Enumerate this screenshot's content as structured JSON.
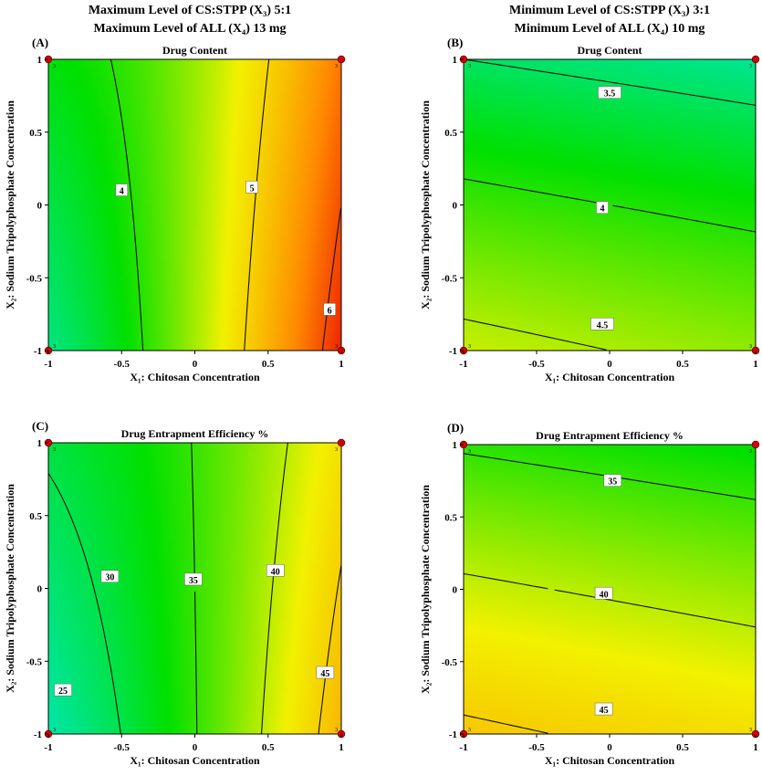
{
  "header": {
    "left_line1": "Maximum Level of CS:STPP (X₃) 5:1",
    "left_line2": "Maximum Level of ALL (X₄) 13 mg",
    "right_line1": "Minimum Level of CS:STPP (X₃) 3:1",
    "right_line2": "Minimum Level of ALL (X₄) 10 mg"
  },
  "chart_data": [
    {
      "type": "heatmap",
      "panel_label": "(A)",
      "title": "Drug Content",
      "xlabel": "X₁: Chitosan Concentration",
      "ylabel": "X₂: Sodium Tripolyphosphate Concentration",
      "xlim": [
        -1,
        1
      ],
      "ylim": [
        -1,
        1
      ],
      "xticks": [
        "-1",
        "-0.5",
        "0",
        "0.5",
        "1"
      ],
      "yticks": [
        "-1",
        "-0.5",
        "0",
        "0.5",
        "1"
      ],
      "colormap": [
        "#00e8e0",
        "#00e000",
        "#f2f200",
        "#ff8800",
        "#e80000"
      ],
      "color_range": [
        3.0,
        6.5
      ],
      "surface": {
        "kind": "poly",
        "c": 4.45,
        "a": 1.2,
        "b": -0.02,
        "ab": -0.25,
        "a2": 0.35,
        "b2": 0.0
      },
      "contour_levels": [
        4,
        5,
        6
      ],
      "contour_labels": [
        {
          "text": "4",
          "x": -0.5,
          "y": 0.1
        },
        {
          "text": "5",
          "x": 0.39,
          "y": 0.12
        },
        {
          "text": "6",
          "x": 0.92,
          "y": -0.72
        }
      ],
      "design_points": [
        {
          "x": -1,
          "y": 1,
          "n": "3"
        },
        {
          "x": 1,
          "y": 1,
          "n": "3"
        },
        {
          "x": -1,
          "y": -1,
          "n": "3"
        },
        {
          "x": 1,
          "y": -1,
          "n": "3"
        }
      ]
    },
    {
      "type": "heatmap",
      "panel_label": "(B)",
      "title": "Drug Content",
      "xlabel": "X₁: Chitosan Concentration",
      "ylabel": "X₂: Sodium Tripolyphosphate Concentration",
      "xlim": [
        -1,
        1
      ],
      "ylim": [
        -1,
        1
      ],
      "xticks": [
        "-1",
        "-0.5",
        "0",
        "0.5",
        "1"
      ],
      "yticks": [
        "-1",
        "-0.5",
        "0",
        "0.5",
        "1"
      ],
      "colormap": [
        "#00e8e0",
        "#00e000",
        "#f2f200",
        "#ff8800",
        "#e80000"
      ],
      "color_range": [
        3.0,
        6.5
      ],
      "surface": {
        "kind": "poly",
        "c": 4.0,
        "a": -0.1,
        "b": -0.55,
        "ab": 0.0,
        "a2": 0.0,
        "b2": -0.05
      },
      "contour_levels": [
        3.5,
        4,
        4.5
      ],
      "contour_labels": [
        {
          "text": "3.5",
          "x": 0.0,
          "y": 0.77
        },
        {
          "text": "4",
          "x": -0.05,
          "y": -0.02
        },
        {
          "text": "4.5",
          "x": -0.05,
          "y": -0.82
        }
      ],
      "design_points": [
        {
          "x": -1,
          "y": 1,
          "n": "3"
        },
        {
          "x": 1,
          "y": 1,
          "n": "3"
        },
        {
          "x": -1,
          "y": -1,
          "n": "3"
        },
        {
          "x": 1,
          "y": -1,
          "n": "3"
        }
      ]
    },
    {
      "type": "heatmap",
      "panel_label": "(C)",
      "title": "Drug Entrapment Efficiency %",
      "xlabel": "X₁: Chitosan Concentration",
      "ylabel": "X₂: Sodium Tripolyphosphate Concentration",
      "xlim": [
        -1,
        1
      ],
      "ylim": [
        -1,
        1
      ],
      "xticks": [
        "-1",
        "-0.5",
        "0",
        "0.5",
        "1"
      ],
      "yticks": [
        "-1",
        "-0.5",
        "0",
        "0.5",
        "1"
      ],
      "colormap": [
        "#00e8e0",
        "#00e000",
        "#f2f200",
        "#ff8800",
        "#e80000"
      ],
      "color_range": [
        24,
        60
      ],
      "surface": {
        "kind": "poly",
        "c": 35.0,
        "a": 8.5,
        "b": 0.15,
        "ab": -2.0,
        "a2": 1.8,
        "b2": 0.0
      },
      "contour_levels": [
        25,
        30,
        35,
        40,
        45
      ],
      "contour_labels": [
        {
          "text": "25",
          "x": -0.9,
          "y": -0.7
        },
        {
          "text": "30",
          "x": -0.58,
          "y": 0.08
        },
        {
          "text": "35",
          "x": -0.01,
          "y": 0.06
        },
        {
          "text": "40",
          "x": 0.55,
          "y": 0.12
        },
        {
          "text": "45",
          "x": 0.89,
          "y": -0.58
        }
      ],
      "design_points": [
        {
          "x": -1,
          "y": 1,
          "n": "3"
        },
        {
          "x": 1,
          "y": 1,
          "n": "3"
        },
        {
          "x": -1,
          "y": -1,
          "n": "3"
        },
        {
          "x": 1,
          "y": -1,
          "n": "3"
        }
      ]
    },
    {
      "type": "heatmap",
      "panel_label": "(D)",
      "title": "Drug Entrapment Efficiency %",
      "xlabel": "X₁: Chitosan Concentration",
      "ylabel": "X₂: Sodium Tripolyphosphate Concentration",
      "xlim": [
        -1,
        1
      ],
      "ylim": [
        -1,
        1
      ],
      "xticks": [
        "-1",
        "-0.5",
        "0",
        "0.5",
        "1"
      ],
      "yticks": [
        "-1",
        "-0.5",
        "0",
        "0.5",
        "1"
      ],
      "colormap": [
        "#00e8e0",
        "#00e000",
        "#f2f200",
        "#ff8800",
        "#e80000"
      ],
      "color_range": [
        24,
        60
      ],
      "surface": {
        "kind": "poly",
        "c": 39.6,
        "a": -1.0,
        "b": -5.5,
        "ab": 0.0,
        "a2": 0.0,
        "b2": -0.5
      },
      "contour_levels": [
        35,
        40,
        45
      ],
      "contour_labels": [
        {
          "text": "35",
          "x": 0.02,
          "y": 0.75
        },
        {
          "text": "40",
          "x": -0.04,
          "y": -0.03
        },
        {
          "text": "45",
          "x": -0.04,
          "y": -0.83
        }
      ],
      "design_points": [
        {
          "x": -1,
          "y": 1,
          "n": "3"
        },
        {
          "x": 1,
          "y": 1,
          "n": "3"
        },
        {
          "x": -1,
          "y": -1,
          "n": "3"
        },
        {
          "x": 1,
          "y": -1,
          "n": "3"
        }
      ]
    }
  ]
}
